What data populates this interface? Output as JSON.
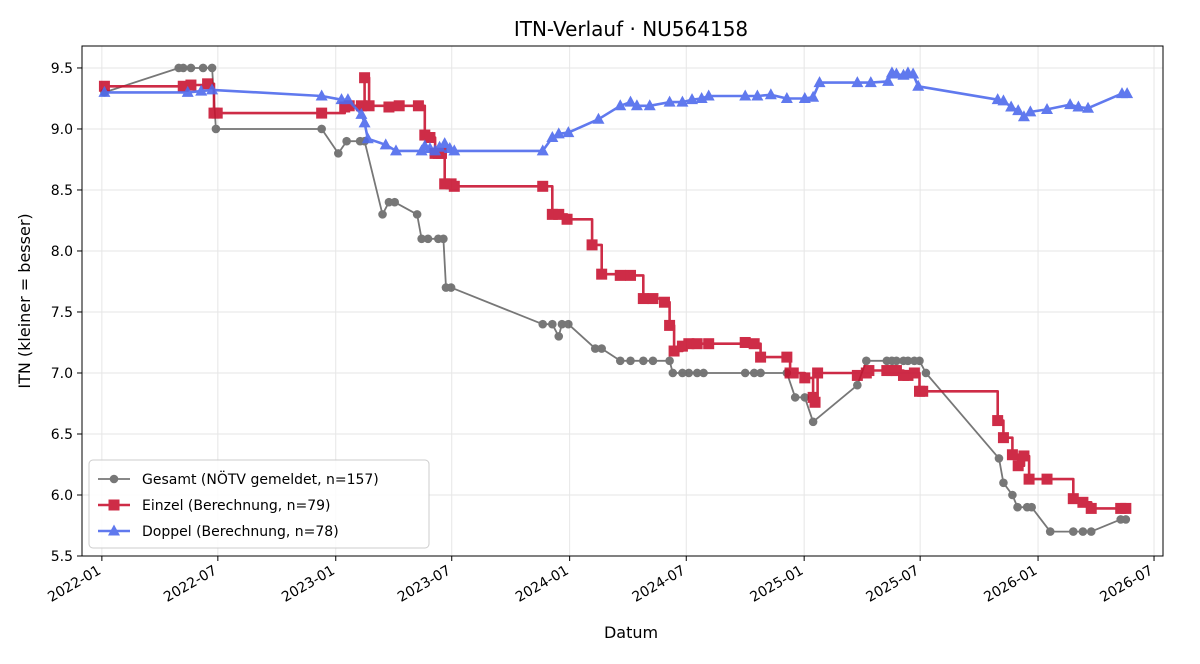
{
  "chart_data": {
    "type": "line",
    "title": "ITN-Verlauf · NU564158",
    "xlabel": "Datum",
    "ylabel": "ITN  (kleiner = besser)",
    "x_axis_type": "date",
    "xlim": [
      "2021-12-01",
      "2026-07-15"
    ],
    "ylim": [
      5.5,
      9.68
    ],
    "x_ticks": [
      {
        "date": "2022-01-01",
        "label": "2022-01"
      },
      {
        "date": "2022-07-01",
        "label": "2022-07"
      },
      {
        "date": "2023-01-01",
        "label": "2023-01"
      },
      {
        "date": "2023-07-01",
        "label": "2023-07"
      },
      {
        "date": "2024-01-01",
        "label": "2024-01"
      },
      {
        "date": "2024-07-01",
        "label": "2024-07"
      },
      {
        "date": "2025-01-01",
        "label": "2025-01"
      },
      {
        "date": "2025-07-01",
        "label": "2025-07"
      },
      {
        "date": "2026-01-01",
        "label": "2026-01"
      },
      {
        "date": "2026-07-01",
        "label": "2026-07"
      }
    ],
    "y_ticks": [
      {
        "value": 5.5,
        "label": "5.5"
      },
      {
        "value": 6.0,
        "label": "6.0"
      },
      {
        "value": 6.5,
        "label": "6.5"
      },
      {
        "value": 7.0,
        "label": "7.0"
      },
      {
        "value": 7.5,
        "label": "7.5"
      },
      {
        "value": 8.0,
        "label": "8.0"
      },
      {
        "value": 8.5,
        "label": "8.5"
      },
      {
        "value": 9.0,
        "label": "9.0"
      },
      {
        "value": 9.5,
        "label": "9.5"
      }
    ],
    "grid": true,
    "legend_position": "lower-left",
    "series": [
      {
        "name": "Gesamt (NÖTV gemeldet, n=157)",
        "color": "#444444",
        "marker": "circle",
        "step": false,
        "points": [
          [
            "2022-01-05",
            9.3
          ],
          [
            "2022-05-01",
            9.5
          ],
          [
            "2022-05-08",
            9.5
          ],
          [
            "2022-05-20",
            9.5
          ],
          [
            "2022-06-08",
            9.5
          ],
          [
            "2022-06-22",
            9.5
          ],
          [
            "2022-06-28",
            9.0
          ],
          [
            "2022-12-10",
            9.0
          ],
          [
            "2023-01-05",
            8.8
          ],
          [
            "2023-01-18",
            8.9
          ],
          [
            "2023-02-08",
            8.9
          ],
          [
            "2023-02-15",
            8.9
          ],
          [
            "2023-03-15",
            8.3
          ],
          [
            "2023-03-25",
            8.4
          ],
          [
            "2023-04-03",
            8.4
          ],
          [
            "2023-05-08",
            8.3
          ],
          [
            "2023-05-15",
            8.1
          ],
          [
            "2023-05-25",
            8.1
          ],
          [
            "2023-06-10",
            8.1
          ],
          [
            "2023-06-18",
            8.1
          ],
          [
            "2023-06-22",
            7.7
          ],
          [
            "2023-06-30",
            7.7
          ],
          [
            "2023-11-20",
            7.4
          ],
          [
            "2023-12-05",
            7.4
          ],
          [
            "2023-12-15",
            7.3
          ],
          [
            "2023-12-20",
            7.4
          ],
          [
            "2023-12-30",
            7.4
          ],
          [
            "2024-02-10",
            7.2
          ],
          [
            "2024-02-20",
            7.2
          ],
          [
            "2024-03-20",
            7.1
          ],
          [
            "2024-04-05",
            7.1
          ],
          [
            "2024-04-25",
            7.1
          ],
          [
            "2024-05-10",
            7.1
          ],
          [
            "2024-06-05",
            7.1
          ],
          [
            "2024-06-10",
            7.0
          ],
          [
            "2024-06-25",
            7.0
          ],
          [
            "2024-07-05",
            7.0
          ],
          [
            "2024-07-18",
            7.0
          ],
          [
            "2024-07-28",
            7.0
          ],
          [
            "2024-10-01",
            7.0
          ],
          [
            "2024-10-15",
            7.0
          ],
          [
            "2024-10-25",
            7.0
          ],
          [
            "2024-12-05",
            7.0
          ],
          [
            "2024-12-18",
            6.8
          ],
          [
            "2025-01-02",
            6.8
          ],
          [
            "2025-01-15",
            6.6
          ],
          [
            "2025-03-25",
            6.9
          ],
          [
            "2025-04-08",
            7.1
          ],
          [
            "2025-05-10",
            7.1
          ],
          [
            "2025-05-18",
            7.1
          ],
          [
            "2025-05-25",
            7.1
          ],
          [
            "2025-06-05",
            7.1
          ],
          [
            "2025-06-12",
            7.1
          ],
          [
            "2025-06-22",
            7.1
          ],
          [
            "2025-06-30",
            7.1
          ],
          [
            "2025-07-10",
            7.0
          ],
          [
            "2025-11-01",
            6.3
          ],
          [
            "2025-11-08",
            6.1
          ],
          [
            "2025-11-22",
            6.0
          ],
          [
            "2025-11-30",
            5.9
          ],
          [
            "2025-12-15",
            5.9
          ],
          [
            "2025-12-22",
            5.9
          ],
          [
            "2026-01-20",
            5.7
          ],
          [
            "2026-02-25",
            5.7
          ],
          [
            "2026-03-12",
            5.7
          ],
          [
            "2026-03-25",
            5.7
          ],
          [
            "2026-05-10",
            5.8
          ],
          [
            "2026-05-18",
            5.8
          ]
        ]
      },
      {
        "name": "Einzel (Berechnung, n=79)",
        "color": "#c8102e",
        "marker": "square",
        "step": true,
        "points": [
          [
            "2022-01-05",
            9.35
          ],
          [
            "2022-05-08",
            9.35
          ],
          [
            "2022-05-20",
            9.36
          ],
          [
            "2022-06-15",
            9.37
          ],
          [
            "2022-06-25",
            9.13
          ],
          [
            "2022-06-30",
            9.13
          ],
          [
            "2022-12-10",
            9.13
          ],
          [
            "2023-01-15",
            9.18
          ],
          [
            "2023-01-22",
            9.19
          ],
          [
            "2023-02-10",
            9.19
          ],
          [
            "2023-02-15",
            9.42
          ],
          [
            "2023-02-22",
            9.19
          ],
          [
            "2023-03-25",
            9.18
          ],
          [
            "2023-04-10",
            9.19
          ],
          [
            "2023-05-10",
            9.19
          ],
          [
            "2023-05-20",
            8.95
          ],
          [
            "2023-05-28",
            8.93
          ],
          [
            "2023-06-05",
            8.8
          ],
          [
            "2023-06-10",
            8.8
          ],
          [
            "2023-06-15",
            8.8
          ],
          [
            "2023-06-20",
            8.55
          ],
          [
            "2023-06-30",
            8.55
          ],
          [
            "2023-07-05",
            8.53
          ],
          [
            "2023-11-20",
            8.53
          ],
          [
            "2023-12-05",
            8.3
          ],
          [
            "2023-12-15",
            8.3
          ],
          [
            "2023-12-28",
            8.26
          ],
          [
            "2024-02-05",
            8.05
          ],
          [
            "2024-02-20",
            7.81
          ],
          [
            "2024-03-20",
            7.8
          ],
          [
            "2024-04-05",
            7.8
          ],
          [
            "2024-04-25",
            7.61
          ],
          [
            "2024-05-10",
            7.61
          ],
          [
            "2024-05-28",
            7.58
          ],
          [
            "2024-06-05",
            7.39
          ],
          [
            "2024-06-12",
            7.18
          ],
          [
            "2024-06-25",
            7.22
          ],
          [
            "2024-07-05",
            7.24
          ],
          [
            "2024-07-18",
            7.24
          ],
          [
            "2024-08-05",
            7.24
          ],
          [
            "2024-10-01",
            7.25
          ],
          [
            "2024-10-15",
            7.24
          ],
          [
            "2024-10-25",
            7.13
          ],
          [
            "2024-12-05",
            7.13
          ],
          [
            "2024-12-10",
            7.0
          ],
          [
            "2024-12-15",
            7.0
          ],
          [
            "2025-01-02",
            6.96
          ],
          [
            "2025-01-15",
            6.8
          ],
          [
            "2025-01-18",
            6.76
          ],
          [
            "2025-01-22",
            7.0
          ],
          [
            "2025-03-25",
            6.98
          ],
          [
            "2025-04-08",
            7.0
          ],
          [
            "2025-04-12",
            7.02
          ],
          [
            "2025-05-10",
            7.02
          ],
          [
            "2025-05-18",
            7.02
          ],
          [
            "2025-05-25",
            7.02
          ],
          [
            "2025-06-05",
            6.98
          ],
          [
            "2025-06-12",
            6.98
          ],
          [
            "2025-06-22",
            7.0
          ],
          [
            "2025-06-30",
            6.85
          ],
          [
            "2025-07-05",
            6.85
          ],
          [
            "2025-10-30",
            6.61
          ],
          [
            "2025-11-08",
            6.47
          ],
          [
            "2025-11-22",
            6.33
          ],
          [
            "2025-12-01",
            6.24
          ],
          [
            "2025-12-10",
            6.32
          ],
          [
            "2025-12-18",
            6.13
          ],
          [
            "2026-01-15",
            6.13
          ],
          [
            "2026-02-25",
            5.97
          ],
          [
            "2026-03-12",
            5.94
          ],
          [
            "2026-03-25",
            5.89
          ],
          [
            "2026-05-10",
            5.89
          ],
          [
            "2026-05-18",
            5.89
          ]
        ]
      },
      {
        "name": "Doppel (Berechnung, n=78)",
        "color": "#4f6bed",
        "marker": "triangle",
        "step": false,
        "points": [
          [
            "2022-01-05",
            9.3
          ],
          [
            "2022-05-15",
            9.3
          ],
          [
            "2022-06-05",
            9.31
          ],
          [
            "2022-06-22",
            9.32
          ],
          [
            "2022-12-10",
            9.27
          ],
          [
            "2023-01-10",
            9.24
          ],
          [
            "2023-01-20",
            9.24
          ],
          [
            "2023-02-10",
            9.12
          ],
          [
            "2023-02-15",
            9.05
          ],
          [
            "2023-02-20",
            8.92
          ],
          [
            "2023-03-20",
            8.87
          ],
          [
            "2023-04-05",
            8.82
          ],
          [
            "2023-05-15",
            8.82
          ],
          [
            "2023-05-20",
            8.86
          ],
          [
            "2023-05-28",
            8.84
          ],
          [
            "2023-06-05",
            8.82
          ],
          [
            "2023-06-12",
            8.85
          ],
          [
            "2023-06-20",
            8.88
          ],
          [
            "2023-06-28",
            8.84
          ],
          [
            "2023-07-05",
            8.82
          ],
          [
            "2023-11-20",
            8.82
          ],
          [
            "2023-12-05",
            8.93
          ],
          [
            "2023-12-15",
            8.96
          ],
          [
            "2023-12-30",
            8.97
          ],
          [
            "2024-02-15",
            9.08
          ],
          [
            "2024-03-20",
            9.19
          ],
          [
            "2024-04-05",
            9.22
          ],
          [
            "2024-04-15",
            9.19
          ],
          [
            "2024-05-05",
            9.19
          ],
          [
            "2024-06-05",
            9.22
          ],
          [
            "2024-06-25",
            9.22
          ],
          [
            "2024-07-10",
            9.24
          ],
          [
            "2024-07-25",
            9.25
          ],
          [
            "2024-08-05",
            9.27
          ],
          [
            "2024-10-01",
            9.27
          ],
          [
            "2024-10-20",
            9.27
          ],
          [
            "2024-11-10",
            9.28
          ],
          [
            "2024-12-05",
            9.25
          ],
          [
            "2025-01-02",
            9.25
          ],
          [
            "2025-01-15",
            9.26
          ],
          [
            "2025-01-25",
            9.38
          ],
          [
            "2025-03-25",
            9.38
          ],
          [
            "2025-04-15",
            9.38
          ],
          [
            "2025-05-12",
            9.39
          ],
          [
            "2025-05-18",
            9.46
          ],
          [
            "2025-05-25",
            9.45
          ],
          [
            "2025-06-05",
            9.44
          ],
          [
            "2025-06-12",
            9.46
          ],
          [
            "2025-06-20",
            9.45
          ],
          [
            "2025-06-28",
            9.35
          ],
          [
            "2025-10-30",
            9.24
          ],
          [
            "2025-11-08",
            9.23
          ],
          [
            "2025-11-20",
            9.18
          ],
          [
            "2025-12-01",
            9.15
          ],
          [
            "2025-12-10",
            9.1
          ],
          [
            "2025-12-20",
            9.14
          ],
          [
            "2026-01-15",
            9.16
          ],
          [
            "2026-02-20",
            9.2
          ],
          [
            "2026-03-05",
            9.18
          ],
          [
            "2026-03-20",
            9.17
          ],
          [
            "2026-05-12",
            9.29
          ],
          [
            "2026-05-20",
            9.29
          ]
        ]
      }
    ]
  }
}
